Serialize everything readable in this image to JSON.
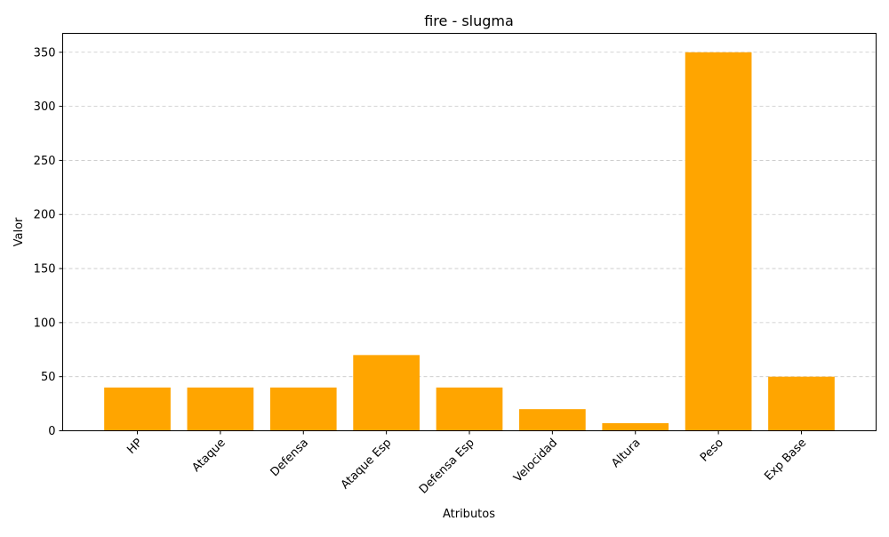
{
  "chart_data": {
    "type": "bar",
    "title": "fire - slugma",
    "xlabel": "Atributos",
    "ylabel": "Valor",
    "categories": [
      "HP",
      "Ataque",
      "Defensa",
      "Ataque Esp",
      "Defensa Esp",
      "Velocidad",
      "Altura",
      "Peso",
      "Exp Base"
    ],
    "values": [
      40,
      40,
      40,
      70,
      40,
      20,
      7,
      350,
      50
    ],
    "ylim": [
      0,
      367.5
    ],
    "yticks": [
      0,
      50,
      100,
      150,
      200,
      250,
      300,
      350
    ],
    "bar_color": "#ffa500",
    "grid": "y-dashed",
    "xtick_rotation": "45 degrees"
  }
}
